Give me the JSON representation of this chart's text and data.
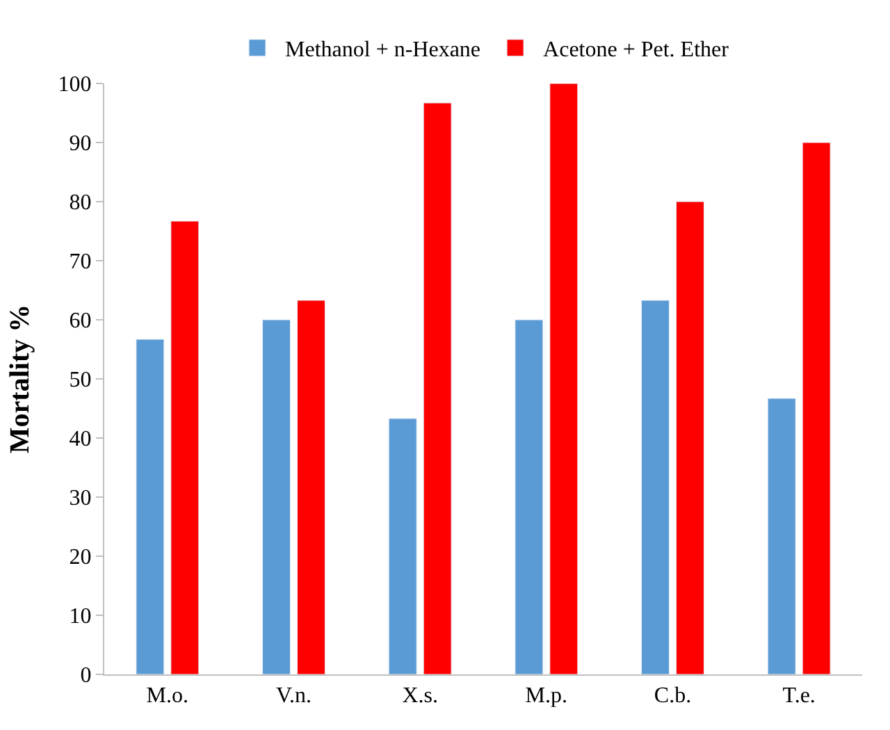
{
  "chart_data": {
    "type": "bar",
    "ylabel": "Mortality %",
    "categories": [
      "M.o.",
      "V.n.",
      "X.s.",
      "M.p.",
      "C.b.",
      "T.e."
    ],
    "series": [
      {
        "name": "Methanol + n-Hexane",
        "color": "#5b9bd5",
        "values": [
          56.7,
          60,
          43.3,
          60,
          63.3,
          46.7
        ]
      },
      {
        "name": "Acetone + Pet. Ether",
        "color": "#ff0000",
        "values": [
          76.7,
          63.3,
          96.7,
          100,
          80,
          90
        ]
      }
    ],
    "ylim": [
      0,
      100
    ],
    "yticks": [
      0,
      10,
      20,
      30,
      40,
      50,
      60,
      70,
      80,
      90,
      100
    ],
    "legend": "top"
  }
}
